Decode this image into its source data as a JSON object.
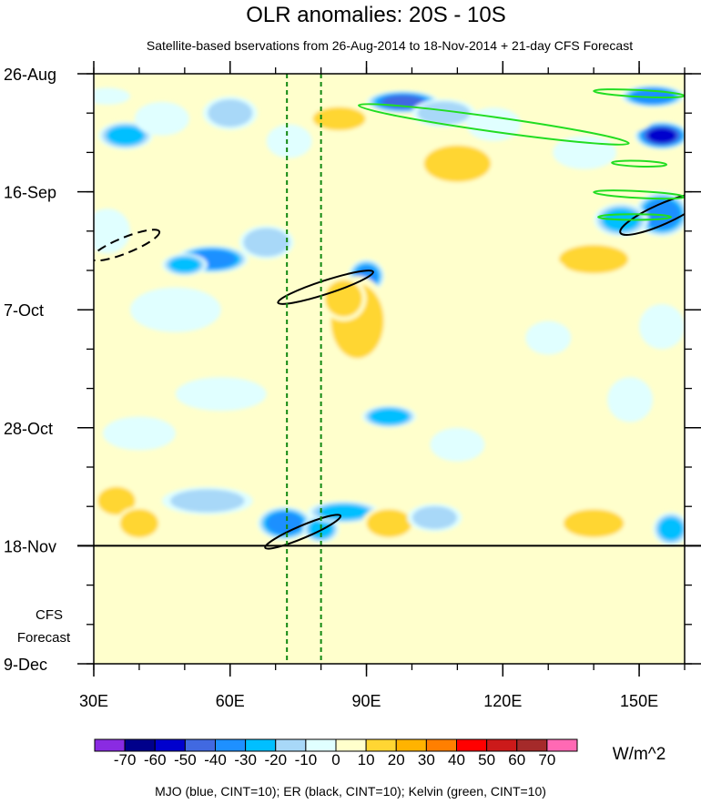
{
  "chart_data": {
    "type": "heatmap",
    "title": "OLR anomalies: 20S - 10S",
    "subtitle": "Satellite-based bservations from 26-Aug-2014 to 18-Nov-2014 + 21-day CFS Forecast",
    "x_ticks": [
      {
        "value": 30,
        "label": "30E"
      },
      {
        "value": 60,
        "label": "60E"
      },
      {
        "value": 90,
        "label": "90E"
      },
      {
        "value": 120,
        "label": "120E"
      },
      {
        "value": 150,
        "label": "150E"
      }
    ],
    "x_minor_step": 10,
    "xlim": [
      30,
      160
    ],
    "y_ticks": [
      {
        "day": 0,
        "label": "26-Aug"
      },
      {
        "day": 21,
        "label": "16-Sep"
      },
      {
        "day": 42,
        "label": "7-Oct"
      },
      {
        "day": 63,
        "label": "28-Oct"
      },
      {
        "day": 84,
        "label": "18-Nov"
      },
      {
        "day": 105,
        "label": "9-Dec"
      }
    ],
    "y_minor_step": 7,
    "ylim_days": [
      0,
      105
    ],
    "observation_end_day": 84,
    "forecast_label_line1": "CFS",
    "forecast_label_line2": "Forecast",
    "reference_lines_lon": [
      72.5,
      80
    ],
    "colorbar": {
      "unit": "W/m^2",
      "levels": [
        -70,
        -60,
        -50,
        -40,
        -30,
        -20,
        -10,
        0,
        10,
        20,
        30,
        40,
        50,
        60,
        70
      ],
      "colors": [
        "#8a2be2",
        "#00008b",
        "#0000cd",
        "#4169e1",
        "#1e90ff",
        "#00bfff",
        "#a8d8f8",
        "#e0ffff",
        "#ffffcc",
        "#ffd633",
        "#ffb300",
        "#ff7f00",
        "#ff0000",
        "#cc1a1a",
        "#a52a2a",
        "#ff69b4"
      ]
    },
    "footer_note": "MJO (blue, CINT=10); ER (black, CINT=10); Kelvin (green, CINT=10)",
    "anomaly_blobs": [
      {
        "lon": 33,
        "day": 4,
        "rl": 5,
        "rd": 1.5,
        "v": -15
      },
      {
        "lon": 37,
        "day": 11,
        "rl": 6,
        "rd": 2.5,
        "v": -30
      },
      {
        "lon": 45,
        "day": 8,
        "rl": 6,
        "rd": 3,
        "v": -12
      },
      {
        "lon": 60,
        "day": 7,
        "rl": 6,
        "rd": 3,
        "v": -20
      },
      {
        "lon": 73,
        "day": 12,
        "rl": 5,
        "rd": 3,
        "v": -10
      },
      {
        "lon": 84,
        "day": 8,
        "rl": 7,
        "rd": 2.5,
        "v": 22
      },
      {
        "lon": 68,
        "day": 20,
        "rl": 5,
        "rd": 3,
        "v": 15
      },
      {
        "lon": 98,
        "day": 5,
        "rl": 8,
        "rd": 2,
        "v": -50
      },
      {
        "lon": 107,
        "day": 7,
        "rl": 7,
        "rd": 2.5,
        "v": -22
      },
      {
        "lon": 153,
        "day": 4,
        "rl": 7,
        "rd": 2,
        "v": -45
      },
      {
        "lon": 155,
        "day": 11,
        "rl": 6,
        "rd": 2.5,
        "v": -60
      },
      {
        "lon": 147,
        "day": 8,
        "rl": 6,
        "rd": 2.5,
        "v": 18
      },
      {
        "lon": 118,
        "day": 9,
        "rl": 6,
        "rd": 3,
        "v": -10
      },
      {
        "lon": 110,
        "day": 16,
        "rl": 9,
        "rd": 4,
        "v": 20
      },
      {
        "lon": 138,
        "day": 14,
        "rl": 7,
        "rd": 3,
        "v": -12
      },
      {
        "lon": 126,
        "day": 22,
        "rl": 8,
        "rd": 3,
        "v": 12
      },
      {
        "lon": 155,
        "day": 25,
        "rl": 6,
        "rd": 4,
        "v": -45
      },
      {
        "lon": 146,
        "day": 26,
        "rl": 6,
        "rd": 3,
        "v": -30
      },
      {
        "lon": 140,
        "day": 33,
        "rl": 9,
        "rd": 3,
        "v": 25
      },
      {
        "lon": 127,
        "day": 35,
        "rl": 7,
        "rd": 2.5,
        "v": 15
      },
      {
        "lon": 56,
        "day": 33,
        "rl": 8,
        "rd": 2.5,
        "v": -45
      },
      {
        "lon": 50,
        "day": 34,
        "rl": 5,
        "rd": 2,
        "v": -30
      },
      {
        "lon": 68,
        "day": 30,
        "rl": 6,
        "rd": 3,
        "v": -25
      },
      {
        "lon": 90,
        "day": 36,
        "rl": 4,
        "rd": 3,
        "v": -40
      },
      {
        "lon": 33,
        "day": 28,
        "rl": 5,
        "rd": 4,
        "v": -12
      },
      {
        "lon": 48,
        "day": 42,
        "rl": 10,
        "rd": 4,
        "v": -10
      },
      {
        "lon": 88,
        "day": 44,
        "rl": 7,
        "rd": 8,
        "v": 22
      },
      {
        "lon": 80,
        "day": 52,
        "rl": 5,
        "rd": 5,
        "v": 15
      },
      {
        "lon": 85,
        "day": 40,
        "rl": 5,
        "rd": 4,
        "v": 20
      },
      {
        "lon": 107,
        "day": 38,
        "rl": 5,
        "rd": 3,
        "v": 12
      },
      {
        "lon": 145,
        "day": 41,
        "rl": 8,
        "rd": 3,
        "v": 14
      },
      {
        "lon": 155,
        "day": 45,
        "rl": 5,
        "rd": 4,
        "v": -12
      },
      {
        "lon": 130,
        "day": 47,
        "rl": 5,
        "rd": 3,
        "v": -12
      },
      {
        "lon": 118,
        "day": 51,
        "rl": 7,
        "rd": 3,
        "v": 12
      },
      {
        "lon": 95,
        "day": 61,
        "rl": 6,
        "rd": 2,
        "v": -35
      },
      {
        "lon": 58,
        "day": 57,
        "rl": 10,
        "rd": 3,
        "v": -10
      },
      {
        "lon": 40,
        "day": 64,
        "rl": 8,
        "rd": 3,
        "v": -12
      },
      {
        "lon": 148,
        "day": 58,
        "rl": 5,
        "rd": 4,
        "v": -12
      },
      {
        "lon": 110,
        "day": 66,
        "rl": 6,
        "rd": 3,
        "v": -12
      },
      {
        "lon": 35,
        "day": 76,
        "rl": 5,
        "rd": 3,
        "v": 22
      },
      {
        "lon": 40,
        "day": 80,
        "rl": 5,
        "rd": 3,
        "v": 25
      },
      {
        "lon": 55,
        "day": 76,
        "rl": 10,
        "rd": 2.5,
        "v": -20
      },
      {
        "lon": 72,
        "day": 80,
        "rl": 6,
        "rd": 3,
        "v": -45
      },
      {
        "lon": 80,
        "day": 81,
        "rl": 4,
        "rd": 2.5,
        "v": -30
      },
      {
        "lon": 85,
        "day": 78,
        "rl": 8,
        "rd": 2,
        "v": -30
      },
      {
        "lon": 95,
        "day": 80,
        "rl": 6,
        "rd": 3,
        "v": 22
      },
      {
        "lon": 105,
        "day": 79,
        "rl": 6,
        "rd": 2.5,
        "v": -20
      },
      {
        "lon": 120,
        "day": 78,
        "rl": 6,
        "rd": 3,
        "v": 15
      },
      {
        "lon": 140,
        "day": 80,
        "rl": 8,
        "rd": 3,
        "v": 22
      },
      {
        "lon": 157,
        "day": 81,
        "rl": 4,
        "rd": 3,
        "v": -30
      }
    ],
    "er_contours": [
      {
        "lon": 155,
        "day": 25,
        "rl": 10,
        "rd": 1.8,
        "angle": -24,
        "dash": false
      },
      {
        "lon": 81,
        "day": 38,
        "rl": 11,
        "rd": 1.2,
        "angle": -18,
        "dash": false
      },
      {
        "lon": 76,
        "day": 81.5,
        "rl": 9,
        "rd": 1.1,
        "angle": -23,
        "dash": false
      },
      {
        "lon": 37,
        "day": 30.5,
        "rl": 8,
        "rd": 1.4,
        "angle": -22,
        "dash": true
      }
    ],
    "kelvin_contours": [
      {
        "lon": 118,
        "day": 9,
        "rl": 30,
        "rd": 1.3,
        "angle": 8,
        "dash": false
      },
      {
        "lon": 150,
        "day": 3.5,
        "rl": 10,
        "rd": 0.6,
        "angle": 3,
        "dash": false
      },
      {
        "lon": 150,
        "day": 21.5,
        "rl": 10,
        "rd": 0.6,
        "angle": 3,
        "dash": false
      },
      {
        "lon": 150,
        "day": 16,
        "rl": 6,
        "rd": 0.5,
        "angle": 2,
        "dash": false
      },
      {
        "lon": 149,
        "day": 25.5,
        "rl": 8,
        "rd": 0.5,
        "angle": 0,
        "dash": false
      }
    ]
  }
}
